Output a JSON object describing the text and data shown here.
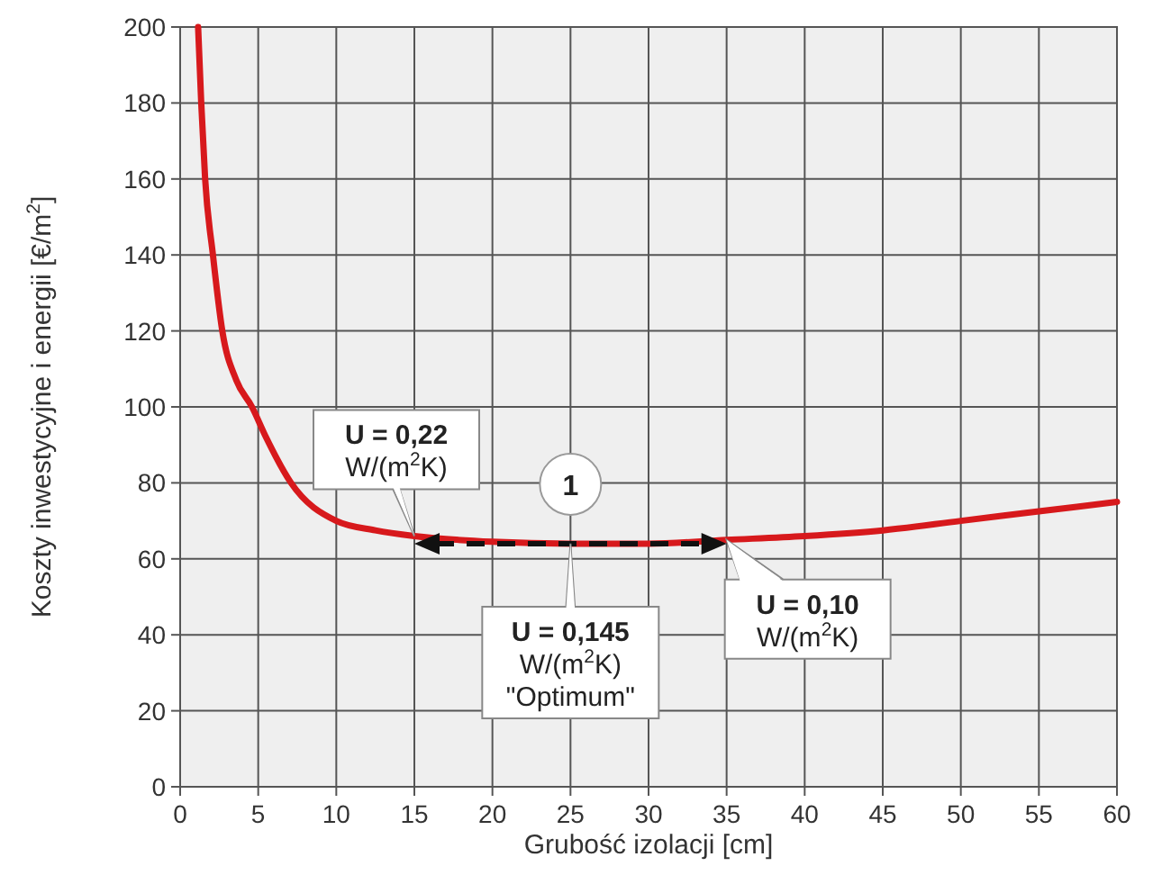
{
  "chart_data": {
    "type": "line",
    "xlabel": "Grubość izolacji [cm]",
    "ylabel": "Koszty inwestycyjne i energii [€/m$^{2}$]",
    "x": [
      1.15,
      1.35,
      1.6,
      2.1,
      2.7,
      3.6,
      4.6,
      5.5,
      7.1,
      10,
      12.5,
      15,
      20,
      25,
      30,
      35,
      40,
      45,
      50,
      55,
      60
    ],
    "series": [
      {
        "color": "#d7191c",
        "values": [
          200,
          180,
          160,
          140,
          120,
          107,
          100,
          92,
          80,
          70,
          67.5,
          66,
          64.5,
          64,
          64,
          65,
          66,
          67.5,
          70,
          72.5,
          75
        ]
      }
    ],
    "xlim": [
      0,
      60
    ],
    "xticks": [
      0,
      5,
      10,
      15,
      20,
      25,
      30,
      35,
      40,
      45,
      50,
      55,
      60
    ],
    "ylim": [
      0,
      200
    ],
    "yticks": [
      0,
      20,
      40,
      60,
      80,
      100,
      120,
      140,
      160,
      180,
      200
    ],
    "grid": true,
    "marker": "none",
    "line_style": "solid",
    "annotations": [
      {
        "text": "U = 0,22\nW/(m$^{2}$K)",
        "x": 15,
        "y": 66
      },
      {
        "text": "U = 0,145\nW/(m$^{2}$K)\n\"Optimum\"",
        "x": 25,
        "y": 64
      },
      {
        "text": "U = 0,10\nW/(m$^{2}$K)",
        "x": 35,
        "y": 65
      },
      {
        "text": "1",
        "x": 25,
        "y": 64
      }
    ]
  }
}
